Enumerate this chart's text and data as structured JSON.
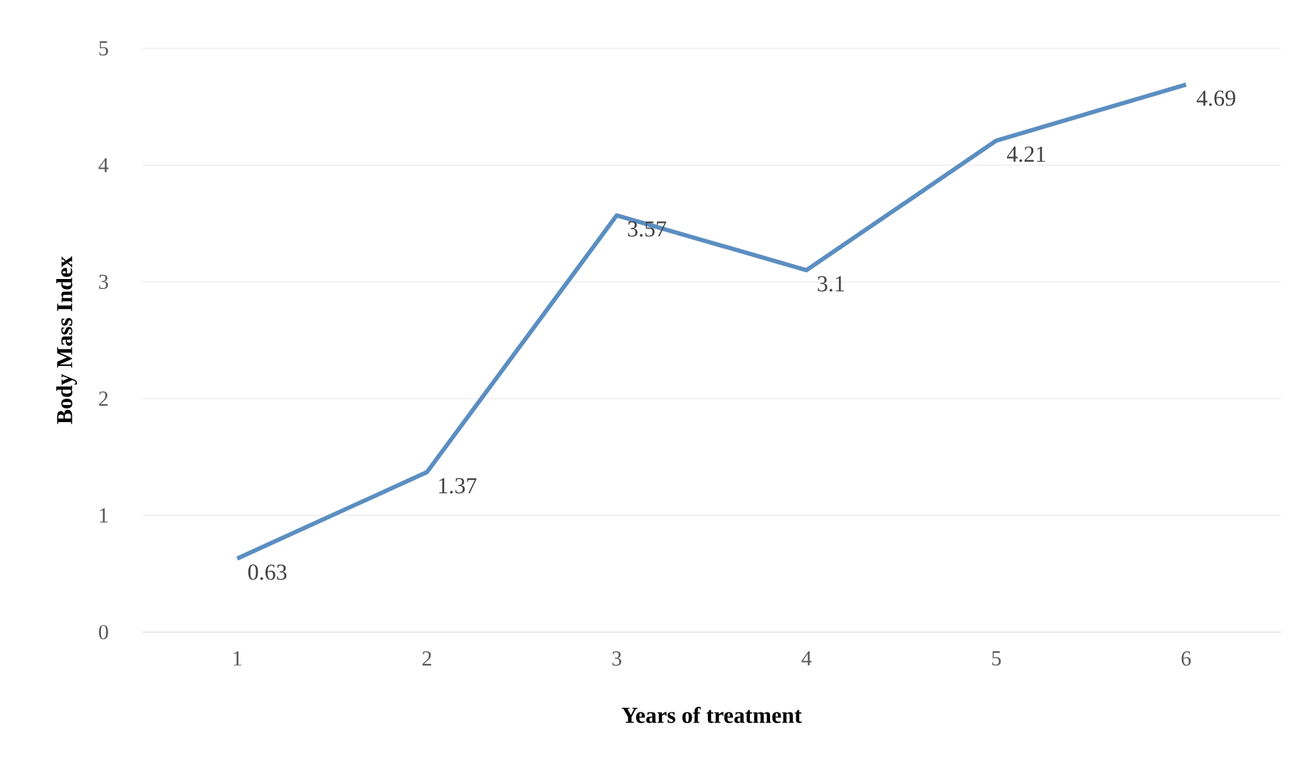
{
  "chart_data": {
    "type": "line",
    "xlabel": "Years of treatment",
    "ylabel": "Body Mass Index",
    "categories": [
      "1",
      "2",
      "3",
      "4",
      "5",
      "6"
    ],
    "values": [
      0.63,
      1.37,
      3.57,
      3.1,
      4.21,
      4.69
    ],
    "color": "#5b8ec1",
    "ylim": [
      0,
      5
    ],
    "yticks": [
      0,
      1,
      2,
      3,
      4,
      5
    ],
    "grid": "y",
    "data_labels": true,
    "marker": "none",
    "line_style": "solid"
  }
}
